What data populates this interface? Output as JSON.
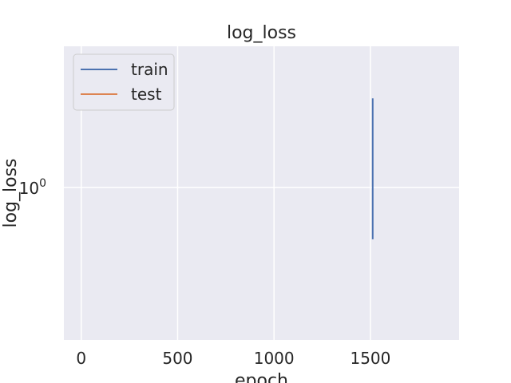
{
  "chart_data": {
    "type": "line",
    "title": "log_loss",
    "xlabel": "epoch",
    "ylabel": "log_loss",
    "y_scale": "log",
    "xlim": [
      -90,
      1960
    ],
    "ylim": [
      0.5,
      1.9
    ],
    "x_ticks": [
      0,
      500,
      1000,
      1500
    ],
    "y_ticks": [
      {
        "value": 1,
        "base": "10",
        "exponent": "0"
      }
    ],
    "grid": true,
    "legend": "top-left",
    "series": [
      {
        "name": "train",
        "color": "#4c72b0",
        "points": [
          [
            1512,
            1.5
          ],
          [
            1512,
            0.79
          ]
        ]
      },
      {
        "name": "test",
        "color": "#dd8452",
        "points": []
      }
    ]
  }
}
